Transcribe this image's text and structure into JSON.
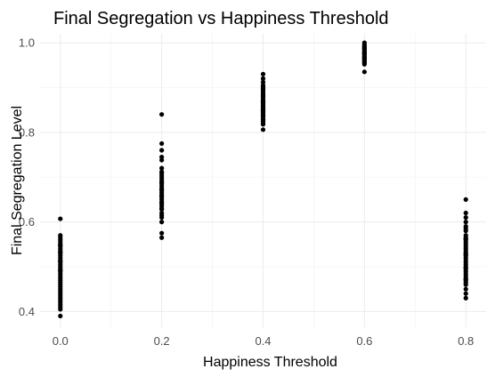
{
  "chart_data": {
    "type": "scatter",
    "title": "Final Segregation vs Happiness Threshold",
    "xlabel": "Happiness Threshold",
    "ylabel": "Final Segregation Level",
    "xlim": [
      -0.04,
      0.84
    ],
    "ylim": [
      0.365,
      1.02
    ],
    "xticks": [
      0.0,
      0.2,
      0.4,
      0.6,
      0.8
    ],
    "xtick_labels": [
      "0.0",
      "0.2",
      "0.4",
      "0.6",
      "0.8"
    ],
    "yticks": [
      0.4,
      0.6,
      0.8,
      1.0
    ],
    "ytick_labels": [
      "0.4",
      "0.6",
      "0.8",
      "1.0"
    ],
    "grid": true,
    "legend": "none",
    "point_color": "#000000",
    "series": [
      {
        "x": [
          0.0,
          0.0,
          0.0,
          0.0,
          0.0,
          0.0,
          0.0,
          0.0,
          0.0,
          0.0,
          0.0,
          0.0,
          0.0,
          0.0,
          0.0,
          0.0,
          0.0,
          0.0,
          0.0,
          0.0,
          0.0,
          0.0,
          0.0,
          0.0,
          0.0,
          0.0,
          0.0,
          0.0,
          0.0,
          0.0,
          0.0,
          0.0,
          0.0,
          0.0,
          0.0,
          0.0,
          0.0,
          0.0,
          0.0,
          0.0,
          0.2,
          0.2,
          0.2,
          0.2,
          0.2,
          0.2,
          0.2,
          0.2,
          0.2,
          0.2,
          0.2,
          0.2,
          0.2,
          0.2,
          0.2,
          0.2,
          0.2,
          0.2,
          0.2,
          0.2,
          0.2,
          0.2,
          0.2,
          0.2,
          0.2,
          0.2,
          0.2,
          0.2,
          0.2,
          0.2,
          0.2,
          0.2,
          0.2,
          0.2,
          0.2,
          0.4,
          0.4,
          0.4,
          0.4,
          0.4,
          0.4,
          0.4,
          0.4,
          0.4,
          0.4,
          0.4,
          0.4,
          0.4,
          0.4,
          0.4,
          0.4,
          0.4,
          0.4,
          0.4,
          0.4,
          0.4,
          0.4,
          0.4,
          0.4,
          0.4,
          0.4,
          0.4,
          0.4,
          0.4,
          0.4,
          0.4,
          0.4,
          0.4,
          0.4,
          0.4,
          0.6,
          0.6,
          0.6,
          0.6,
          0.6,
          0.6,
          0.6,
          0.6,
          0.6,
          0.6,
          0.6,
          0.6,
          0.6,
          0.6,
          0.6,
          0.6,
          0.6,
          0.6,
          0.6,
          0.6,
          0.6,
          0.6,
          0.6,
          0.6,
          0.6,
          0.6,
          0.6,
          0.8,
          0.8,
          0.8,
          0.8,
          0.8,
          0.8,
          0.8,
          0.8,
          0.8,
          0.8,
          0.8,
          0.8,
          0.8,
          0.8,
          0.8,
          0.8,
          0.8,
          0.8,
          0.8,
          0.8,
          0.8,
          0.8,
          0.8,
          0.8,
          0.8,
          0.8,
          0.8,
          0.8,
          0.8,
          0.8,
          0.8,
          0.8,
          0.8,
          0.8,
          0.8,
          0.8,
          0.8
        ],
        "y": [
          0.607,
          0.57,
          0.565,
          0.56,
          0.555,
          0.55,
          0.545,
          0.54,
          0.535,
          0.53,
          0.525,
          0.52,
          0.515,
          0.51,
          0.505,
          0.5,
          0.495,
          0.49,
          0.485,
          0.48,
          0.475,
          0.47,
          0.465,
          0.46,
          0.455,
          0.45,
          0.445,
          0.44,
          0.435,
          0.43,
          0.425,
          0.42,
          0.415,
          0.41,
          0.405,
          0.39,
          0.548,
          0.532,
          0.512,
          0.492,
          0.84,
          0.775,
          0.76,
          0.745,
          0.72,
          0.71,
          0.7,
          0.695,
          0.69,
          0.685,
          0.68,
          0.675,
          0.67,
          0.665,
          0.66,
          0.655,
          0.65,
          0.645,
          0.64,
          0.635,
          0.63,
          0.62,
          0.61,
          0.6,
          0.575,
          0.565,
          0.705,
          0.688,
          0.672,
          0.658,
          0.643,
          0.628,
          0.615,
          0.712,
          0.738,
          0.93,
          0.92,
          0.912,
          0.905,
          0.898,
          0.892,
          0.887,
          0.882,
          0.877,
          0.872,
          0.868,
          0.864,
          0.86,
          0.856,
          0.852,
          0.848,
          0.844,
          0.84,
          0.835,
          0.83,
          0.825,
          0.82,
          0.806,
          0.895,
          0.879,
          0.866,
          0.858,
          0.846,
          0.838,
          0.828,
          0.818,
          0.902,
          0.885,
          0.87,
          0.85,
          1.0,
          0.995,
          0.991,
          0.988,
          0.985,
          0.982,
          0.979,
          0.976,
          0.973,
          0.97,
          0.967,
          0.964,
          0.961,
          0.958,
          0.955,
          0.952,
          0.935,
          0.993,
          0.986,
          0.98,
          0.974,
          0.968,
          0.962,
          0.956,
          0.989,
          0.977,
          0.965,
          0.65,
          0.62,
          0.61,
          0.6,
          0.59,
          0.58,
          0.57,
          0.565,
          0.56,
          0.555,
          0.55,
          0.545,
          0.54,
          0.535,
          0.53,
          0.525,
          0.52,
          0.515,
          0.51,
          0.505,
          0.5,
          0.495,
          0.49,
          0.485,
          0.48,
          0.475,
          0.47,
          0.465,
          0.46,
          0.45,
          0.44,
          0.43,
          0.585,
          0.562,
          0.528,
          0.498,
          0.472
        ]
      }
    ]
  }
}
